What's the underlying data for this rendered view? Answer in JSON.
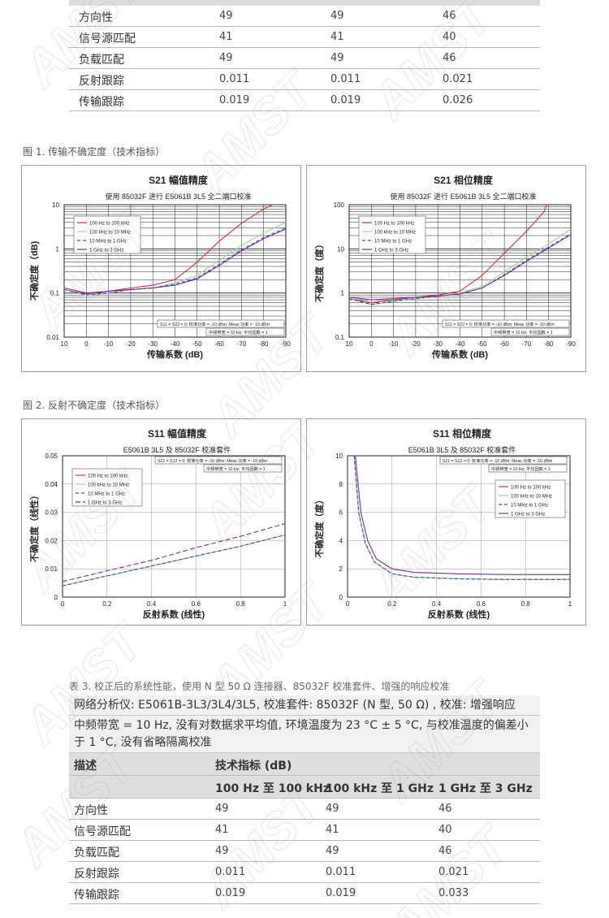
{
  "top_table": {
    "rows": [
      {
        "desc": "方向性",
        "v1": "49",
        "v2": "49",
        "v3": "46"
      },
      {
        "desc": "信号源匹配",
        "v1": "41",
        "v2": "41",
        "v3": "40"
      },
      {
        "desc": "负载匹配",
        "v1": "49",
        "v2": "49",
        "v3": "46"
      },
      {
        "desc": "反射跟踪",
        "v1": "0.011",
        "v2": "0.011",
        "v3": "0.021"
      },
      {
        "desc": "传输跟踪",
        "v1": "0.019",
        "v2": "0.019",
        "v3": "0.026"
      }
    ]
  },
  "figure1": {
    "caption": "图 1. 传输不确定度（技术指标）"
  },
  "figure2": {
    "caption": "图 2. 反射不确定度（技术指标）"
  },
  "chart_data": [
    {
      "type": "line",
      "title": "S21 幅值精度",
      "subtitle": "使用 85032F 进行 E5061B 3L5 全二端口校准",
      "xlabel": "传输系数 (dB)",
      "ylabel": "不确定度（dB)",
      "y_scale": "log",
      "xlim": [
        10,
        -90
      ],
      "ylim": [
        0.01,
        10
      ],
      "x_ticks": [
        "10",
        "0",
        "-10",
        "-20",
        "-30",
        "-40",
        "-50",
        "-60",
        "-70",
        "-80",
        "-90"
      ],
      "y_ticks": [
        "0.01",
        "0.1",
        "1",
        "10"
      ],
      "notes": [
        "S11 = S22 = 0;  校准功率 = -10 dBm;    Meas 功率 = -10 dBm",
        "中频带宽 = 10 Hz;      平均因数 = 1"
      ],
      "series": [
        {
          "name": "100 Hz to 100 kHz",
          "color": "#e0262c",
          "dash": "",
          "x": [
            10,
            0,
            -10,
            -20,
            -30,
            -40,
            -50,
            -60,
            -70,
            -80,
            -84
          ],
          "y": [
            0.12,
            0.095,
            0.11,
            0.13,
            0.15,
            0.2,
            0.5,
            1.5,
            3.8,
            8,
            10
          ]
        },
        {
          "name": "100 kHz to 10 MHz",
          "color": "#8fdc8f",
          "dash": "",
          "x": [
            10,
            0,
            -10,
            -20,
            -30,
            -40,
            -50,
            -60,
            -70,
            -80,
            -90
          ],
          "y": [
            0.12,
            0.09,
            0.1,
            0.12,
            0.13,
            0.17,
            0.25,
            0.55,
            1.2,
            2.3,
            4
          ]
        },
        {
          "name": "10 MHz to 1 GHz",
          "color": "#3a48c8",
          "dash": "4,3",
          "x": [
            10,
            0,
            -10,
            -20,
            -30,
            -40,
            -50,
            -60,
            -70,
            -80,
            -90
          ],
          "y": [
            0.12,
            0.09,
            0.1,
            0.12,
            0.13,
            0.16,
            0.22,
            0.45,
            0.95,
            1.8,
            3
          ]
        },
        {
          "name": "1 GHz to 3 GHz",
          "color": "#7a2a98",
          "dash": "",
          "x": [
            10,
            0,
            -10,
            -20,
            -30,
            -40,
            -50,
            -60,
            -70,
            -80,
            -90
          ],
          "y": [
            0.13,
            0.1,
            0.11,
            0.12,
            0.13,
            0.15,
            0.21,
            0.42,
            0.9,
            1.7,
            2.8
          ]
        }
      ]
    },
    {
      "type": "line",
      "title": "S21 相位精度",
      "subtitle": "使用 85032F 进行 E5061B 3L5 全二端口校准",
      "xlabel": "传输系数 (dB)",
      "ylabel": "不确定度（度）",
      "y_scale": "log",
      "xlim": [
        10,
        -90
      ],
      "ylim": [
        0.1,
        100
      ],
      "x_ticks": [
        "10",
        "0",
        "-10",
        "-20",
        "-30",
        "-40",
        "-50",
        "-60",
        "-70",
        "-80",
        "-90"
      ],
      "y_ticks": [
        "0.1",
        "1",
        "10",
        "100"
      ],
      "notes": [
        "S11 = S22 = 0;  校准功率 = -10 dBm;    Meas 功率 = -10 dBm",
        "中频带宽 = 10 Hz;      平均因数 = 1"
      ],
      "series": [
        {
          "name": "100 Hz to 100 kHz",
          "color": "#e0262c",
          "dash": "",
          "x": [
            10,
            0,
            -10,
            -20,
            -30,
            -40,
            -50,
            -60,
            -70,
            -78,
            -79
          ],
          "y": [
            0.75,
            0.6,
            0.7,
            0.8,
            0.9,
            1.1,
            2.5,
            8,
            25,
            70,
            100
          ]
        },
        {
          "name": "100 kHz to 10 MHz",
          "color": "#8fdc8f",
          "dash": "",
          "x": [
            10,
            0,
            -10,
            -20,
            -30,
            -40,
            -50,
            -60,
            -70,
            -80,
            -90
          ],
          "y": [
            0.75,
            0.55,
            0.65,
            0.75,
            0.85,
            1,
            1.4,
            3,
            6.5,
            13,
            28
          ]
        },
        {
          "name": "10 MHz to 1 GHz",
          "color": "#3a48c8",
          "dash": "4,3",
          "x": [
            10,
            0,
            -10,
            -20,
            -30,
            -40,
            -50,
            -60,
            -70,
            -80,
            -90
          ],
          "y": [
            0.75,
            0.55,
            0.65,
            0.75,
            0.85,
            0.95,
            1.3,
            2.6,
            5.5,
            11,
            22
          ]
        },
        {
          "name": "1 GHz to 3 GHz",
          "color": "#7a2a98",
          "dash": "",
          "x": [
            10,
            0,
            -10,
            -20,
            -30,
            -40,
            -50,
            -60,
            -70,
            -80,
            -90
          ],
          "y": [
            0.8,
            0.7,
            0.75,
            0.8,
            0.85,
            0.95,
            1.3,
            2.5,
            5.2,
            10.5,
            21
          ]
        }
      ]
    },
    {
      "type": "line",
      "title": "S11 幅值精度",
      "subtitle": "E5061B 3L5 及 85032F 校准套件",
      "xlabel": "反射系数 (线性)",
      "ylabel": "不确定度（线性）",
      "y_scale": "linear",
      "xlim": [
        0,
        1
      ],
      "ylim": [
        0,
        0.05
      ],
      "x_ticks": [
        "0",
        "0.2",
        "0.4",
        "0.6",
        "0.8",
        "1"
      ],
      "y_ticks": [
        "0",
        "0.01",
        "0.02",
        "0.03",
        "0.04",
        "0.05"
      ],
      "notes": [
        "S21 = S12 = 0;  校准功率 = -10 dBm;    Meas 功率 = -10 dBm",
        "中频带宽 = 10 Hz;      平均因数 = 1"
      ],
      "series": [
        {
          "name": "100 Hz to 100 kHz",
          "color": "#e0262c",
          "dash": "",
          "x": [
            0,
            0.2,
            0.4,
            0.6,
            0.8,
            1
          ],
          "y": [
            0.004,
            0.0075,
            0.011,
            0.0145,
            0.018,
            0.022
          ]
        },
        {
          "name": "100 kHz to 10 MHz",
          "color": "#8fdc8f",
          "dash": "",
          "x": [
            0,
            0.2,
            0.4,
            0.6,
            0.8,
            1
          ],
          "y": [
            0.004,
            0.0075,
            0.011,
            0.0145,
            0.018,
            0.022
          ]
        },
        {
          "name": "10 MHz to 1 GHz",
          "color": "#3a48c8",
          "dash": "4,3",
          "x": [
            0,
            0.2,
            0.4,
            0.6,
            0.8,
            1
          ],
          "y": [
            0.004,
            0.0075,
            0.011,
            0.0145,
            0.018,
            0.022
          ]
        },
        {
          "name": "1 GHz to 3 GHz",
          "color": "#7a2a98",
          "dash": "6,3",
          "x": [
            0,
            0.2,
            0.4,
            0.6,
            0.8,
            1
          ],
          "y": [
            0.0055,
            0.0093,
            0.013,
            0.0175,
            0.0215,
            0.026
          ]
        }
      ]
    },
    {
      "type": "line",
      "title": "S11 相位精度",
      "subtitle": "E5061B 3L5 及 85032F 校准套件",
      "xlabel": "反射系数 (线性)",
      "ylabel": "不确定度（度）",
      "y_scale": "linear",
      "xlim": [
        0,
        1
      ],
      "ylim": [
        0,
        10
      ],
      "x_ticks": [
        "0",
        "0.2",
        "0.4",
        "0.6",
        "0.8",
        "1"
      ],
      "y_ticks": [
        "0",
        "2",
        "4",
        "6",
        "8",
        "10"
      ],
      "notes": [
        "S21 = S12 = 0;  校准功率 = -10 dBm;    Meas 功率 = -10 dBm",
        "中频带宽 = 10 Hz;      平均因数 = 1"
      ],
      "series": [
        {
          "name": "100 Hz to 100 kHz",
          "color": "#e0262c",
          "dash": "",
          "x": [
            0.03,
            0.05,
            0.08,
            0.12,
            0.2,
            0.3,
            0.5,
            0.7,
            1
          ],
          "y": [
            10,
            6,
            3.8,
            2.5,
            1.65,
            1.4,
            1.3,
            1.25,
            1.25
          ]
        },
        {
          "name": "100 kHz to 10 MHz",
          "color": "#8fdc8f",
          "dash": "",
          "x": [
            0.03,
            0.05,
            0.08,
            0.12,
            0.2,
            0.3,
            0.5,
            0.7,
            1
          ],
          "y": [
            10,
            6,
            3.8,
            2.5,
            1.65,
            1.4,
            1.3,
            1.25,
            1.25
          ]
        },
        {
          "name": "10 MHz to 1 GHz",
          "color": "#3a48c8",
          "dash": "4,3",
          "x": [
            0.03,
            0.05,
            0.08,
            0.12,
            0.2,
            0.3,
            0.5,
            0.7,
            1
          ],
          "y": [
            10,
            6,
            3.8,
            2.5,
            1.65,
            1.4,
            1.3,
            1.25,
            1.25
          ]
        },
        {
          "name": "1 GHz to 3 GHz",
          "color": "#7a2a98",
          "dash": "",
          "x": [
            0.035,
            0.06,
            0.09,
            0.13,
            0.2,
            0.3,
            0.5,
            0.7,
            1
          ],
          "y": [
            10,
            6,
            4,
            2.7,
            2,
            1.75,
            1.65,
            1.6,
            1.6
          ]
        }
      ]
    }
  ],
  "table3": {
    "title": "表 3. 校正后的系统性能，使用 N 型 50 Ω 连接器、85032F 校准套件、增强的响应校准",
    "analyzer_line": "网络分析仪: E5061B-3L3/3L4/3L5, 校准套件: 85032F (N 型, 50 Ω) , 校准: 增强响应",
    "conditions_line1": "中频带宽 = 10 Hz, 没有对数据求平均值, 环境温度为 23 °C ± 5 °C, 与校准温度的偏差小",
    "conditions_line2": "于 1 °C, 没有省略隔离校准",
    "header_desc": "描述",
    "header_spec": "技术指标 (dB)",
    "band1": "100 Hz 至 100 kHz",
    "band2": "100 kHz 至 1 GHz",
    "band3": "1 GHz 至 3 GHz",
    "rows": [
      {
        "desc": "方向性",
        "v1": "49",
        "v2": "49",
        "v3": "46"
      },
      {
        "desc": "信号源匹配",
        "v1": "41",
        "v2": "41",
        "v3": "40"
      },
      {
        "desc": "负载匹配",
        "v1": "49",
        "v2": "49",
        "v3": "46"
      },
      {
        "desc": "反射跟踪",
        "v1": "0.011",
        "v2": "0.011",
        "v3": "0.021"
      },
      {
        "desc": "传输跟踪",
        "v1": "0.019",
        "v2": "0.019",
        "v3": "0.033"
      }
    ]
  },
  "watermark": {
    "text": "AMST"
  }
}
